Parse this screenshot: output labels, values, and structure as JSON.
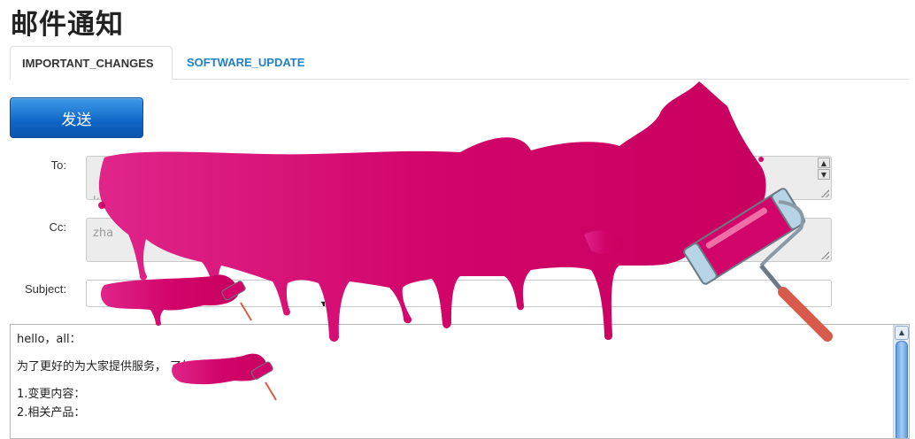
{
  "page": {
    "title": "邮件通知"
  },
  "tabs": [
    {
      "label": "IMPORTANT_CHANGES",
      "active": true
    },
    {
      "label": "SOFTWARE_UPDATE",
      "active": false
    }
  ],
  "actions": {
    "send_label": "发送"
  },
  "form": {
    "to_label": "To:",
    "to_value": "g\nk",
    "cc_label": "Cc:",
    "cc_value": "zha",
    "subject_label": "Subject:",
    "subject_value": "【                                                    】"
  },
  "body": {
    "lines": [
      "hello，all：",
      "为了更好的为大家提供服务，                         了如下变更：",
      "1.变更内容：",
      "2.相关产品："
    ]
  },
  "icons": {
    "redaction": "paint-roller-icon",
    "scroll_up": "scroll-up-arrow-icon",
    "scroll_down": "scroll-down-arrow-icon"
  },
  "colors": {
    "paint": "#d1056a",
    "send_button": "#0f66c7",
    "active_tab_text": "#333333",
    "link_tab_text": "#1f80c8"
  }
}
